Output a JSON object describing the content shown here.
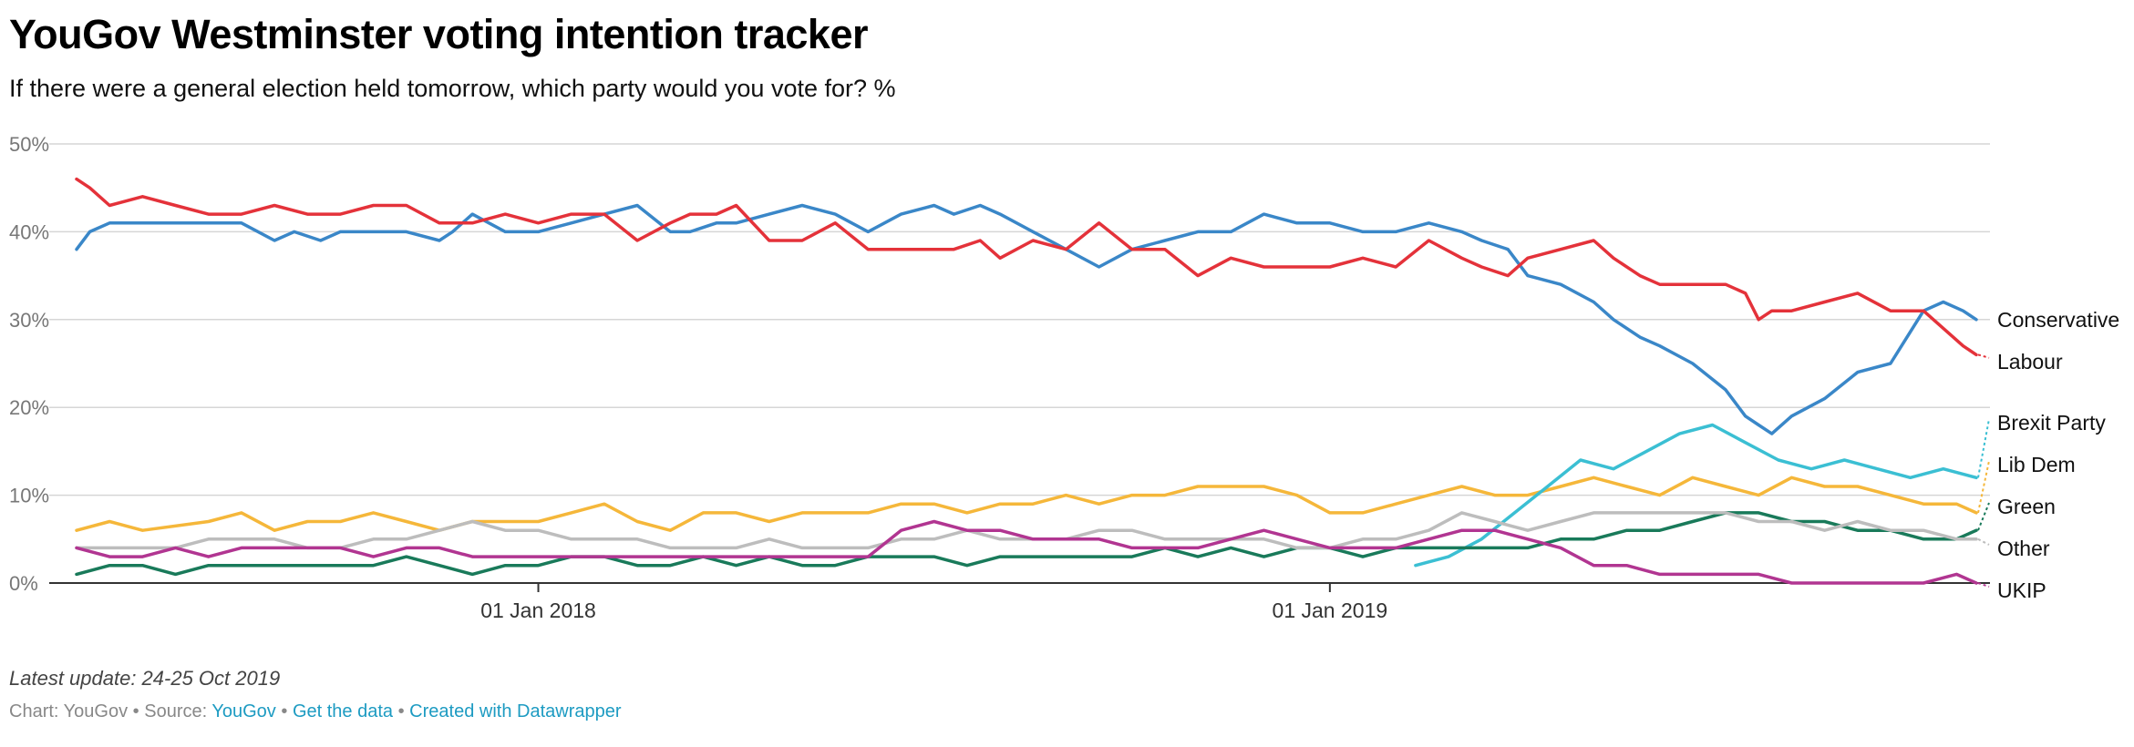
{
  "header": {
    "title": "YouGov Westminster voting intention tracker",
    "subtitle": "If there were a general election held tomorrow, which party would you vote for? %"
  },
  "footer": {
    "update_note": "Latest update: 24-25 Oct 2019",
    "chart_label": "Chart: YouGov",
    "source_label": "Source:",
    "source_link": "YouGov",
    "data_link": "Get the data",
    "created_link": "Created with Datawrapper",
    "separator": "•",
    "link_color": "#1d9bc2"
  },
  "chart_data": {
    "type": "line",
    "title": "YouGov Westminster voting intention tracker",
    "ylabel": "%",
    "ylim": [
      0,
      50
    ],
    "y_ticks": [
      0,
      10,
      20,
      30,
      40,
      50
    ],
    "y_tick_labels": [
      "0%",
      "10%",
      "20%",
      "30%",
      "40%",
      "50%"
    ],
    "x_unit": "months since 01 Jun 2017",
    "xlim": [
      0,
      28.8
    ],
    "x_ticks": [
      7,
      19
    ],
    "x_tick_labels": [
      "01 Jan 2018",
      "01 Jan 2019"
    ],
    "grid": true,
    "legend": "right-end labels",
    "series": [
      {
        "name": "Conservative",
        "color": "#3a87c8",
        "x": [
          0,
          0.2,
          0.5,
          1,
          2,
          2.5,
          3,
          3.3,
          3.7,
          4,
          4.5,
          5,
          5.5,
          5.7,
          6,
          6.5,
          7,
          7.5,
          8,
          8.5,
          9,
          9.3,
          9.7,
          10,
          10.5,
          11,
          11.5,
          12,
          12.5,
          13,
          13.3,
          13.7,
          14,
          14.5,
          15,
          15.5,
          16,
          16.5,
          17,
          17.5,
          18,
          18.5,
          19,
          19.5,
          20,
          20.5,
          21,
          21.3,
          21.7,
          22,
          22.5,
          23,
          23.3,
          23.7,
          24,
          24.5,
          25,
          25.3,
          25.5,
          25.7,
          26,
          26.5,
          27,
          27.5,
          28,
          28.3,
          28.6,
          28.8
        ],
        "y": [
          38,
          40,
          41,
          41,
          41,
          41,
          39,
          40,
          39,
          40,
          40,
          40,
          39,
          40,
          42,
          40,
          40,
          41,
          42,
          43,
          40,
          40,
          41,
          41,
          42,
          43,
          42,
          40,
          42,
          43,
          42,
          43,
          42,
          40,
          38,
          36,
          38,
          39,
          40,
          40,
          42,
          41,
          41,
          40,
          40,
          41,
          40,
          39,
          38,
          35,
          34,
          32,
          30,
          28,
          27,
          25,
          22,
          19,
          18,
          17,
          19,
          21,
          24,
          25,
          31,
          32,
          31,
          30
        ]
      },
      {
        "name": "Labour",
        "color": "#e4323a",
        "x": [
          0,
          0.2,
          0.5,
          1,
          1.5,
          2,
          2.5,
          3,
          3.5,
          4,
          4.5,
          5,
          5.5,
          5.7,
          6,
          6.5,
          7,
          7.5,
          8,
          8.5,
          9,
          9.3,
          9.7,
          10,
          10.5,
          11,
          11.5,
          12,
          12.5,
          13,
          13.3,
          13.7,
          14,
          14.5,
          15,
          15.5,
          16,
          16.5,
          17,
          17.5,
          18,
          18.5,
          19,
          19.5,
          20,
          20.5,
          21,
          21.3,
          21.7,
          22,
          22.5,
          23,
          23.3,
          23.7,
          24,
          24.5,
          25,
          25.3,
          25.5,
          25.7,
          26,
          26.5,
          27,
          27.5,
          28,
          28.3,
          28.6,
          28.8
        ],
        "y": [
          46,
          45,
          43,
          44,
          43,
          42,
          42,
          43,
          42,
          42,
          43,
          43,
          41,
          41,
          41,
          42,
          41,
          42,
          42,
          39,
          41,
          42,
          42,
          43,
          39,
          39,
          41,
          38,
          38,
          38,
          38,
          39,
          37,
          39,
          38,
          41,
          38,
          38,
          35,
          37,
          36,
          36,
          36,
          37,
          36,
          39,
          37,
          36,
          35,
          37,
          38,
          39,
          37,
          35,
          34,
          34,
          34,
          33,
          30,
          31,
          31,
          32,
          33,
          31,
          31,
          29,
          27,
          26
        ]
      },
      {
        "name": "Lib Dem",
        "color": "#f5b73a",
        "x": [
          0,
          0.5,
          1,
          2,
          2.5,
          3,
          3.5,
          4,
          4.5,
          5,
          5.5,
          6,
          6.5,
          7,
          7.5,
          8,
          8.5,
          9,
          9.5,
          10,
          10.5,
          11,
          11.5,
          12,
          12.5,
          13,
          13.5,
          14,
          14.5,
          15,
          15.5,
          16,
          16.5,
          17,
          17.5,
          18,
          18.5,
          19,
          19.5,
          20,
          20.5,
          21,
          21.5,
          22,
          22.5,
          23,
          23.5,
          24,
          24.5,
          25,
          25.5,
          26,
          26.5,
          27,
          27.5,
          28,
          28.5,
          28.8
        ],
        "y": [
          6,
          7,
          6,
          7,
          8,
          6,
          7,
          7,
          8,
          7,
          6,
          7,
          7,
          7,
          8,
          9,
          7,
          6,
          8,
          8,
          7,
          8,
          8,
          8,
          9,
          9,
          8,
          9,
          9,
          10,
          9,
          10,
          10,
          11,
          11,
          11,
          10,
          8,
          8,
          9,
          10,
          11,
          10,
          10,
          11,
          12,
          11,
          10,
          12,
          11,
          10,
          12,
          11,
          11,
          10,
          9,
          9,
          8
        ]
      },
      {
        "name": "Brexit Party",
        "color": "#3bbfd3",
        "x": [
          20.3,
          20.8,
          21.3,
          21.8,
          22.3,
          22.8,
          23.3,
          23.8,
          24.3,
          24.8,
          25.3,
          25.8,
          26.3,
          26.8,
          27.3,
          27.8,
          28.3,
          28.8
        ],
        "y": [
          2,
          3,
          5,
          8,
          11,
          14,
          13,
          15,
          17,
          18,
          16,
          14,
          13,
          14,
          13,
          12,
          13,
          12
        ]
      },
      {
        "name": "Green",
        "color": "#197a5a",
        "x": [
          0,
          0.5,
          1,
          1.5,
          2,
          2.5,
          3,
          3.5,
          4,
          4.5,
          5,
          5.5,
          6,
          6.5,
          7,
          7.5,
          8,
          8.5,
          9,
          9.5,
          10,
          10.5,
          11,
          11.5,
          12,
          12.5,
          13,
          13.5,
          14,
          14.5,
          15,
          15.5,
          16,
          16.5,
          17,
          17.5,
          18,
          18.5,
          19,
          19.5,
          20,
          20.5,
          21,
          21.5,
          22,
          22.5,
          23,
          23.5,
          24,
          24.5,
          25,
          25.5,
          26,
          26.5,
          27,
          27.5,
          28,
          28.5,
          28.8
        ],
        "y": [
          1,
          2,
          2,
          1,
          2,
          2,
          2,
          2,
          2,
          2,
          3,
          2,
          1,
          2,
          2,
          3,
          3,
          2,
          2,
          3,
          2,
          3,
          2,
          2,
          3,
          3,
          3,
          2,
          3,
          3,
          3,
          3,
          3,
          4,
          3,
          4,
          3,
          4,
          4,
          3,
          4,
          4,
          4,
          4,
          4,
          5,
          5,
          6,
          6,
          7,
          8,
          8,
          7,
          7,
          6,
          6,
          5,
          5,
          6
        ]
      },
      {
        "name": "Other",
        "color": "#bdbdbd",
        "x": [
          0,
          0.5,
          1,
          1.5,
          2,
          2.5,
          3,
          3.5,
          4,
          4.5,
          5,
          5.5,
          6,
          6.5,
          7,
          7.5,
          8,
          8.5,
          9,
          9.5,
          10,
          10.5,
          11,
          11.5,
          12,
          12.5,
          13,
          13.5,
          14,
          14.5,
          15,
          15.5,
          16,
          16.5,
          17,
          17.5,
          18,
          18.5,
          19,
          19.5,
          20,
          20.5,
          21,
          21.5,
          22,
          22.5,
          23,
          23.5,
          24,
          24.5,
          25,
          25.5,
          26,
          26.5,
          27,
          27.5,
          28,
          28.5,
          28.8
        ],
        "y": [
          4,
          4,
          4,
          4,
          5,
          5,
          5,
          4,
          4,
          5,
          5,
          6,
          7,
          6,
          6,
          5,
          5,
          5,
          4,
          4,
          4,
          5,
          4,
          4,
          4,
          5,
          5,
          6,
          5,
          5,
          5,
          6,
          6,
          5,
          5,
          5,
          5,
          4,
          4,
          5,
          5,
          6,
          8,
          7,
          6,
          7,
          8,
          8,
          8,
          8,
          8,
          7,
          7,
          6,
          7,
          6,
          6,
          5,
          5
        ]
      },
      {
        "name": "UKIP",
        "color": "#b13591",
        "x": [
          0,
          0.5,
          1,
          1.5,
          2,
          2.5,
          3,
          3.5,
          4,
          4.5,
          5,
          5.5,
          6,
          6.5,
          7,
          7.5,
          8,
          8.5,
          9,
          9.5,
          10,
          10.5,
          11,
          11.5,
          12,
          12.5,
          13,
          13.5,
          14,
          14.5,
          15,
          15.5,
          16,
          16.5,
          17,
          17.5,
          18,
          18.5,
          19,
          19.5,
          20,
          20.5,
          21,
          21.5,
          22,
          22.5,
          23,
          23.5,
          24,
          24.5,
          25,
          25.5,
          26,
          26.5,
          27,
          27.5,
          28,
          28.5,
          28.8
        ],
        "y": [
          4,
          3,
          3,
          4,
          3,
          4,
          4,
          4,
          4,
          3,
          4,
          4,
          3,
          3,
          3,
          3,
          3,
          3,
          3,
          3,
          3,
          3,
          3,
          3,
          3,
          6,
          7,
          6,
          6,
          5,
          5,
          5,
          4,
          4,
          4,
          5,
          6,
          5,
          4,
          4,
          4,
          5,
          6,
          6,
          5,
          4,
          2,
          2,
          1,
          1,
          1,
          1,
          0,
          0,
          0,
          0,
          0,
          1,
          0
        ]
      }
    ]
  }
}
